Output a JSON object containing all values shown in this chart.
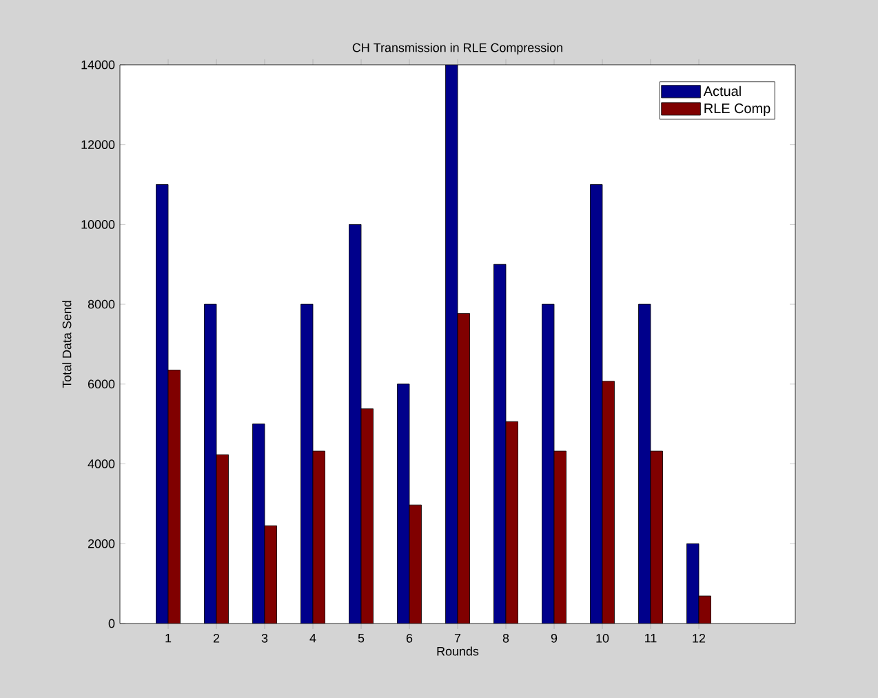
{
  "chart_data": {
    "type": "bar",
    "title": "CH Transmission in RLE Compression",
    "xlabel": "Rounds",
    "ylabel": "Total Data Send",
    "x": [
      1,
      2,
      3,
      4,
      5,
      6,
      7,
      8,
      9,
      10,
      11,
      12
    ],
    "xlim": [
      0,
      14
    ],
    "xticks": [
      1,
      2,
      3,
      4,
      5,
      6,
      7,
      8,
      9,
      10,
      11,
      12
    ],
    "ylim": [
      0,
      14000
    ],
    "yticks": [
      0,
      2000,
      4000,
      6000,
      8000,
      10000,
      12000,
      14000
    ],
    "series": [
      {
        "name": "Actual",
        "color": "#00008b",
        "values": [
          11000,
          8000,
          5000,
          8000,
          10000,
          6000,
          14000,
          9000,
          8000,
          11000,
          8000,
          2000
        ]
      },
      {
        "name": "RLE Comp",
        "color": "#800000",
        "values": [
          6350,
          4230,
          2450,
          4320,
          5380,
          2970,
          7770,
          5060,
          4320,
          6070,
          4320,
          690
        ]
      }
    ],
    "grid": false,
    "legend": "top right"
  }
}
